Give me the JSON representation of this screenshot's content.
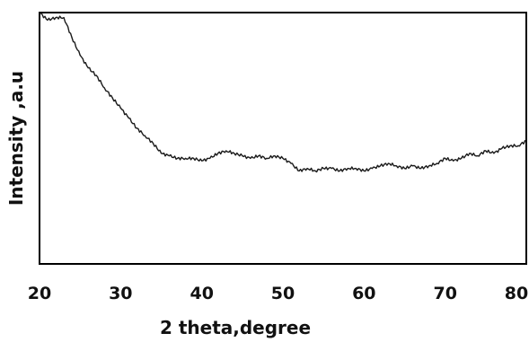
{
  "chart_data": {
    "type": "line",
    "title": "",
    "xlabel": "2 theta,degree",
    "ylabel": "Intensity ,a.u",
    "xlim": [
      20,
      80
    ],
    "ylim": [
      0,
      100
    ],
    "x_ticks": [
      "20",
      "30",
      "40",
      "50",
      "60",
      "70",
      "80"
    ],
    "y_ticks": [],
    "grid": false,
    "legend": "none",
    "colors": {
      "line": "#1a1a1a",
      "frame": "#000000",
      "background": "#ffffff"
    },
    "series": [
      {
        "x": [
          20,
          21,
          22,
          23,
          24,
          25,
          26,
          27,
          28,
          29,
          30,
          31,
          32,
          33,
          34,
          35,
          36,
          37,
          38,
          39,
          40,
          41,
          42,
          43,
          44,
          45,
          46,
          47,
          48,
          49,
          50,
          51,
          52,
          53,
          54,
          55,
          56,
          57,
          58,
          59,
          60,
          61,
          62,
          63,
          64,
          65,
          66,
          67,
          68,
          69,
          70,
          71,
          72,
          73,
          74,
          75,
          76,
          77,
          78,
          79,
          80
        ],
        "y": [
          100,
          97,
          98,
          98,
          90,
          83,
          78,
          75,
          70,
          66,
          62,
          58,
          54,
          51,
          48,
          44,
          43,
          42,
          42,
          42,
          41,
          42,
          44,
          45,
          44,
          43,
          42,
          43,
          42,
          43,
          42,
          40,
          37,
          38,
          37,
          38,
          38,
          37,
          38,
          38,
          37,
          38,
          39,
          40,
          39,
          38,
          39,
          38,
          39,
          40,
          42,
          41,
          42,
          44,
          43,
          45,
          44,
          46,
          47,
          47,
          49
        ]
      }
    ]
  }
}
